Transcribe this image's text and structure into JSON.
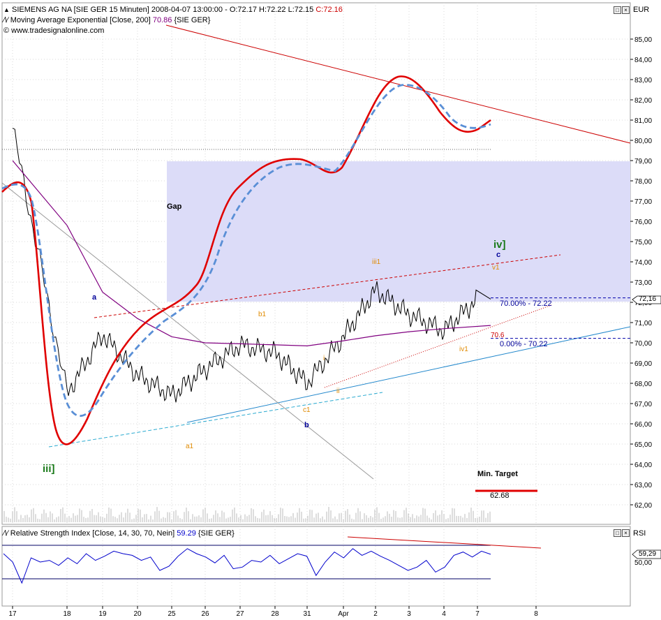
{
  "header": {
    "title": "SIEMENS AG NA [SIE GER  15 Minuten] 2008-04-07 13:00:00 - O:72.17 H:72.22 L:72.15",
    "close_label": "C:72.16",
    "ema_label": "Moving Average Exponential [Close, 200]",
    "ema_value": "70.86",
    "ema_symbol": "{SIE GER}",
    "website": "www.tradesignalonline.com",
    "currency": "EUR"
  },
  "rsi_header": {
    "label": "Relative Strength Index [Close, 14, 30, 70, Nein]",
    "value": "59.29",
    "symbol": "{SIE GER}",
    "axis_title": "RSI"
  },
  "price_axis": {
    "ticks": [
      "85,00",
      "84,00",
      "83,00",
      "82,00",
      "81,00",
      "80,00",
      "79,00",
      "78,00",
      "77,00",
      "76,00",
      "75,00",
      "74,00",
      "73,00",
      "72,00",
      "71,00",
      "70,00",
      "69,00",
      "68,00",
      "67,00",
      "66,00",
      "65,00",
      "64,00",
      "63,00",
      "62,00"
    ],
    "current_marker": "72,16"
  },
  "rsi_axis": {
    "ticks": [
      "50,00"
    ],
    "current_marker": "59,29"
  },
  "date_axis": {
    "labels": [
      "17",
      "18",
      "19",
      "20",
      "25",
      "26",
      "27",
      "28",
      "31",
      "Apr",
      "2",
      "3",
      "4",
      "7",
      "8"
    ]
  },
  "annotations": {
    "gap": "Gap",
    "wave_iii": "iii]",
    "wave_iv": "iv]",
    "a_blue": "a",
    "b_blue": "b",
    "c_blue": "c",
    "a1": "a1",
    "b1": "b1",
    "c1": "c1",
    "iii1": "iii1",
    "iv1": "iv1",
    "v1": "v1",
    "i_small": "i",
    "ii_small": "ii",
    "fib_70": "70.00% - 72.22",
    "fib_0": "0.00% - 70.22",
    "ema_level": "70.6",
    "min_target_label": "Min. Target",
    "min_target_value": "62.68"
  },
  "colors": {
    "price": "#000000",
    "ema": "#800080",
    "fast_curve": "#e00000",
    "slow_curve": "#5a8fd6",
    "gap_zone": "#dcdcf8",
    "rsi": "#0000cc",
    "trend_red": "#cc0000",
    "trend_blue": "#2288cc"
  },
  "chart_data": {
    "type": "line",
    "title": "SIEMENS AG NA [SIE GER  15 Minuten]",
    "x": [
      "17",
      "18",
      "19",
      "20",
      "25",
      "26",
      "27",
      "28",
      "31",
      "Apr",
      "2",
      "3",
      "4",
      "7",
      "8"
    ],
    "ylim": [
      61.5,
      85.8
    ],
    "series": [
      {
        "name": "SIEMENS AG NA",
        "values": [
          80.6,
          67.5,
          70.4,
          68.4,
          67.4,
          68.7,
          69.9,
          69.5,
          68.0,
          70.3,
          72.6,
          71.4,
          70.6,
          72.16,
          null
        ]
      },
      {
        "name": "Moving Average Exponential [Close, 200]",
        "values": [
          79.0,
          75.8,
          72.5,
          71.2,
          70.3,
          70.0,
          69.95,
          69.9,
          69.85,
          70.1,
          70.35,
          70.55,
          70.7,
          70.86,
          null
        ]
      }
    ],
    "zones": [
      {
        "label": "Gap",
        "y_from": 72.05,
        "y_to": 79.0
      }
    ],
    "fib_levels": [
      {
        "label": "70.00% - 72.22",
        "y": 72.22
      },
      {
        "label": "0.00% - 70.22",
        "y": 70.22
      }
    ],
    "target": {
      "label": "Min. Target",
      "y": 62.68
    },
    "rsi": {
      "ylim": [
        20,
        80
      ],
      "upper": 70,
      "lower": 30,
      "values": [
        60,
        50,
        25,
        55,
        50,
        52,
        46,
        55,
        48,
        60,
        52,
        57,
        63,
        60,
        58,
        52,
        56,
        40,
        45,
        57,
        66,
        60,
        56,
        49,
        58,
        42,
        44,
        52,
        50,
        58,
        48,
        54,
        60,
        57,
        34,
        50,
        62,
        55,
        66,
        58,
        63,
        57,
        52,
        46,
        40,
        44,
        52,
        38,
        44,
        58,
        62,
        56,
        63,
        59.29
      ]
    }
  }
}
